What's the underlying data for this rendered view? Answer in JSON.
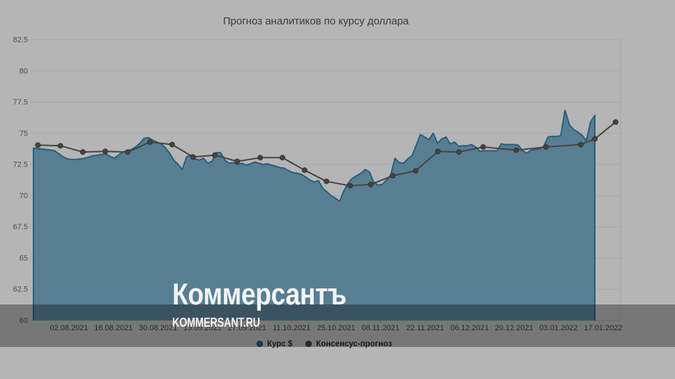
{
  "title": "Прогноз аналитиков по курсу доллара",
  "watermark": {
    "logo": "Коммерсантъ",
    "site": "KOMMERSANT.RU"
  },
  "legend": {
    "items": [
      {
        "label": "Курс $",
        "color": "#23648a"
      },
      {
        "label": "Консенсус-прогноз",
        "color": "#454545"
      }
    ]
  },
  "colors": {
    "background": "#b5b5b5",
    "grid": "#a6a6a6",
    "tick": "#9b9b9b",
    "axis_text": "#3e3e3e",
    "band_overlay": "rgba(0,0,0,0.34)",
    "usd_fill": "#587e93",
    "usd_line": "#275e7c",
    "consensus_line": "#46433f",
    "watermark_text": "#f4f4f4"
  },
  "chart_data": {
    "type": "area",
    "title": "Прогноз аналитиков по курсу доллара",
    "xlabel": "",
    "ylabel": "",
    "ylim": [
      60,
      82.5
    ],
    "grid": "horizontal",
    "legend_position": "bottom-center",
    "y_ticks": [
      "82.5",
      "80",
      "77.5",
      "75",
      "72.5",
      "70",
      "67.5",
      "65",
      "62.5",
      "60"
    ],
    "y_tick_values": [
      82.5,
      80,
      77.5,
      75,
      72.5,
      70,
      67.5,
      65,
      62.5,
      60
    ],
    "x_tick_labels": [
      "02.08.2021",
      "16.08.2021",
      "30.08.2021",
      "13.09.2021",
      "27.09.2021",
      "11.10.2021",
      "25.10.2021",
      "08.11.2021",
      "22.11.2021",
      "06.12.2021",
      "20.12.2021",
      "03.01.2022",
      "17.01.2022"
    ],
    "series": [
      {
        "name": "Курс $",
        "type": "area",
        "line_color": "#275e7c",
        "fill_color": "#587e93",
        "values": [
          73.8,
          73.78,
          73.74,
          73.7,
          73.65,
          73.6,
          73.35,
          73.1,
          72.95,
          72.9,
          72.9,
          72.95,
          73.0,
          73.1,
          73.2,
          73.25,
          73.3,
          73.35,
          73.15,
          73.0,
          73.25,
          73.5,
          73.6,
          73.7,
          73.9,
          74.2,
          74.6,
          74.65,
          74.45,
          74.3,
          74.15,
          73.85,
          73.4,
          72.85,
          72.5,
          72.1,
          73.1,
          73.25,
          72.95,
          72.85,
          73.0,
          72.6,
          72.75,
          73.45,
          73.45,
          72.85,
          72.6,
          72.65,
          72.5,
          72.6,
          72.45,
          72.55,
          72.7,
          72.6,
          72.5,
          72.55,
          72.45,
          72.35,
          72.25,
          72.2,
          72.0,
          71.85,
          71.8,
          71.7,
          71.5,
          71.25,
          71.1,
          71.2,
          70.6,
          70.3,
          70.0,
          69.8,
          69.55,
          70.4,
          71.0,
          71.4,
          71.6,
          71.8,
          72.1,
          71.9,
          71.1,
          70.85,
          70.9,
          71.25,
          71.65,
          73.0,
          72.65,
          72.6,
          72.95,
          73.2,
          74.05,
          74.9,
          74.7,
          74.5,
          75.0,
          74.2,
          74.55,
          74.7,
          74.15,
          74.3,
          73.95,
          74.0,
          74.0,
          74.1,
          73.9,
          73.55,
          73.6,
          73.6,
          73.6,
          73.6,
          74.15,
          74.1,
          74.1,
          74.1,
          74.05,
          73.6,
          73.4,
          73.65,
          73.7,
          73.75,
          73.95,
          74.7,
          74.75,
          74.75,
          74.8,
          76.85,
          75.7,
          75.3,
          75.1,
          74.85,
          74.4,
          75.9,
          76.45
        ]
      },
      {
        "name": "Консенсус-прогноз",
        "type": "line_markers",
        "color": "#46433f",
        "points": [
          [
            0.008,
            74.05
          ],
          [
            0.048,
            74.0
          ],
          [
            0.088,
            73.5
          ],
          [
            0.128,
            73.55
          ],
          [
            0.168,
            73.5
          ],
          [
            0.2075,
            74.3
          ],
          [
            0.247,
            74.1
          ],
          [
            0.2845,
            73.1
          ],
          [
            0.323,
            73.25
          ],
          [
            0.363,
            72.75
          ],
          [
            0.404,
            73.05
          ],
          [
            0.4435,
            73.05
          ],
          [
            0.483,
            72.05
          ],
          [
            0.522,
            71.15
          ],
          [
            0.564,
            70.8
          ],
          [
            0.601,
            70.9
          ],
          [
            0.64,
            71.6
          ],
          [
            0.681,
            72.0
          ],
          [
            0.7205,
            73.55
          ],
          [
            0.758,
            73.5
          ],
          [
            0.801,
            73.9
          ],
          [
            0.86,
            73.65
          ],
          [
            0.913,
            73.9
          ],
          [
            0.975,
            74.1
          ],
          [
            1.0,
            74.55
          ],
          [
            1.037,
            75.9
          ]
        ]
      }
    ]
  }
}
